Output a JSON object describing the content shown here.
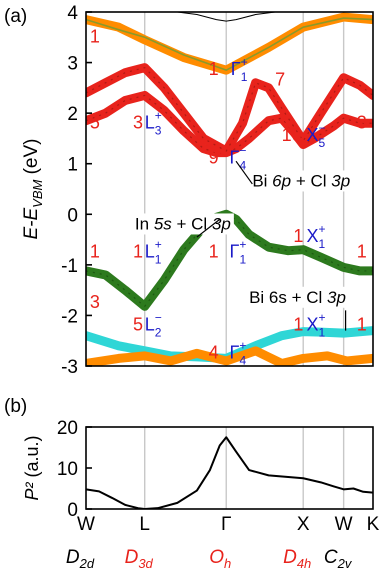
{
  "panel_a_label": "(a)",
  "panel_b_label": "(b)",
  "colors": {
    "green": "#2d7a1e",
    "red": "#e8231c",
    "orange": "#ff8c00",
    "cyan": "#2fd6d6",
    "olive": "#8a9a2a",
    "blue": "#1a1ac8",
    "grid": "#c8c8c8"
  },
  "chart_data": [
    {
      "type": "line",
      "panel": "(a)",
      "ylabel": "E-E_VBM (eV)",
      "ylabel_parts": [
        "E",
        "-E",
        "VBM",
        " (eV)"
      ],
      "ylim": [
        -3,
        4
      ],
      "yticks": [
        "4",
        "3",
        "2",
        "1",
        "0",
        "-1",
        "-2",
        "-3"
      ],
      "kpoints": [
        "W",
        "L",
        "Γ",
        "X",
        "W",
        "K"
      ],
      "kpath": [
        0,
        0.9,
        2.15,
        3.33,
        3.95,
        4.4
      ],
      "series": [
        {
          "color": "green",
          "x": [
            0,
            0.3,
            0.6,
            0.9,
            1.2,
            1.5,
            1.8,
            2.0,
            2.15,
            2.3,
            2.5,
            2.8,
            3.1,
            3.33,
            3.6,
            3.95,
            4.2,
            4.4
          ],
          "y": [
            -1.12,
            -1.2,
            -1.5,
            -1.82,
            -1.3,
            -0.7,
            -0.25,
            -0.06,
            0.0,
            -0.1,
            -0.4,
            -0.65,
            -0.72,
            -0.7,
            -0.85,
            -1.05,
            -1.12,
            -1.12
          ]
        },
        {
          "color": "red",
          "x": [
            0,
            0.3,
            0.6,
            0.9,
            1.2,
            1.5,
            1.8,
            2.0,
            2.15,
            2.3,
            2.5,
            2.8,
            3.0,
            3.2,
            3.33,
            3.5,
            3.8,
            3.95,
            4.2,
            4.4
          ],
          "y": [
            1.85,
            2.0,
            2.25,
            2.35,
            2.05,
            1.65,
            1.3,
            1.22,
            1.22,
            1.3,
            1.5,
            1.85,
            1.9,
            1.6,
            1.38,
            1.5,
            1.75,
            1.9,
            1.8,
            1.8
          ]
        },
        {
          "color": "red",
          "x": [
            0,
            0.3,
            0.6,
            0.9,
            1.2,
            1.5,
            1.8,
            2.15,
            2.4,
            2.6,
            2.8,
            3.0,
            3.33,
            3.6,
            3.95,
            4.2,
            4.4
          ],
          "y": [
            2.4,
            2.6,
            2.8,
            2.9,
            2.5,
            2.0,
            1.5,
            1.25,
            1.8,
            2.6,
            2.5,
            2.1,
            1.45,
            2.0,
            2.7,
            2.55,
            2.35
          ]
        },
        {
          "color": "cyan",
          "x": [
            0,
            0.5,
            0.9,
            1.3,
            1.7,
            2.15,
            2.6,
            3.0,
            3.33,
            3.6,
            3.95,
            4.4
          ],
          "y": [
            -2.4,
            -2.6,
            -2.7,
            -2.8,
            -2.82,
            -2.85,
            -2.6,
            -2.4,
            -2.32,
            -2.33,
            -2.35,
            -2.3
          ]
        },
        {
          "color": "orange",
          "x": [
            0,
            0.5,
            0.9,
            1.3,
            1.7,
            2.15,
            2.6,
            3.0,
            3.33,
            3.7,
            4.0,
            4.4
          ],
          "y": [
            -2.95,
            -2.85,
            -2.8,
            -2.9,
            -2.75,
            -2.9,
            -2.7,
            -2.95,
            -2.85,
            -2.8,
            -2.9,
            -2.85
          ]
        },
        {
          "color": "orange",
          "x": [
            0,
            0.5,
            0.9,
            1.5,
            2.15,
            2.8,
            3.33,
            3.95,
            4.4
          ],
          "y": [
            3.85,
            3.7,
            3.45,
            3.1,
            2.85,
            3.3,
            3.7,
            3.9,
            3.85
          ]
        },
        {
          "color": "olive",
          "x": [
            0,
            0.5,
            0.9,
            1.5,
            2.15,
            2.8,
            3.33,
            3.95,
            4.4
          ],
          "y": [
            3.85,
            3.65,
            3.5,
            3.15,
            2.85,
            3.3,
            3.7,
            3.88,
            3.85
          ]
        },
        {
          "color": "black",
          "x": [
            1.4,
            1.7,
            2.0,
            2.15,
            2.3,
            2.6,
            2.9
          ],
          "y": [
            4.0,
            3.95,
            3.85,
            3.82,
            3.85,
            3.95,
            4.0
          ]
        }
      ],
      "annotations": [
        {
          "text": "1",
          "kind": "red",
          "x": 0.06,
          "y": 3.4
        },
        {
          "text": "5",
          "kind": "red",
          "x": 0.06,
          "y": 1.7
        },
        {
          "text": "3",
          "kind": "red",
          "x": 0.72,
          "y": 1.7
        },
        {
          "text": "1",
          "kind": "red",
          "x": 0.06,
          "y": -0.85
        },
        {
          "text": "1",
          "kind": "red",
          "x": 0.72,
          "y": -0.85
        },
        {
          "text": "3",
          "kind": "red",
          "x": 0.06,
          "y": -1.85
        },
        {
          "text": "5",
          "kind": "red",
          "x": 0.72,
          "y": -2.3
        },
        {
          "text": "1",
          "kind": "red",
          "x": 1.88,
          "y": 2.75
        },
        {
          "text": "7",
          "kind": "red",
          "x": 2.9,
          "y": 2.55
        },
        {
          "text": "9",
          "kind": "red",
          "x": 1.88,
          "y": 1.0
        },
        {
          "text": "10",
          "kind": "red",
          "x": 3.0,
          "y": 1.45
        },
        {
          "text": "3",
          "kind": "red",
          "x": 4.15,
          "y": 1.7
        },
        {
          "text": "1",
          "kind": "red",
          "x": 1.88,
          "y": -0.85
        },
        {
          "text": "1",
          "kind": "red",
          "x": 3.18,
          "y": -0.55
        },
        {
          "text": "1",
          "kind": "red",
          "x": 4.15,
          "y": -0.85
        },
        {
          "text": "4",
          "kind": "red",
          "x": 1.88,
          "y": -2.85
        },
        {
          "text": "1",
          "kind": "red",
          "x": 3.18,
          "y": -2.3
        },
        {
          "text": "1",
          "kind": "red",
          "x": 4.15,
          "y": -2.3
        }
      ],
      "irreps": [
        {
          "base": "Γ",
          "sup": "+",
          "sub": "1",
          "x": 2.22,
          "y": 2.75
        },
        {
          "base": "L",
          "sup": "+",
          "sub": "3",
          "x": 0.9,
          "y": 1.7
        },
        {
          "base": "Γ",
          "sup": "−",
          "sub": "4",
          "x": 2.2,
          "y": 1.0
        },
        {
          "base": "X",
          "sup": "−",
          "sub": "5",
          "x": 3.38,
          "y": 1.45
        },
        {
          "base": "L",
          "sup": "+",
          "sub": "1",
          "x": 0.9,
          "y": -0.85
        },
        {
          "base": "Γ",
          "sup": "+",
          "sub": "1",
          "x": 2.2,
          "y": -0.85
        },
        {
          "base": "X",
          "sup": "+",
          "sub": "1",
          "x": 3.38,
          "y": -0.55
        },
        {
          "base": "L",
          "sup": "−",
          "sub": "2",
          "x": 0.9,
          "y": -2.3
        },
        {
          "base": "Γ",
          "sup": "+",
          "sub": "4",
          "x": 2.2,
          "y": -2.85
        },
        {
          "base": "X",
          "sup": "+",
          "sub": "1",
          "x": 3.38,
          "y": -2.3
        }
      ],
      "orbital_labels": [
        {
          "parts": [
            "Bi ",
            "6p",
            " + Cl ",
            "3p"
          ],
          "x": 2.55,
          "y": 0.55
        },
        {
          "parts": [
            "In ",
            "5s",
            " + Cl ",
            "3p"
          ],
          "x": 0.75,
          "y": -0.3
        },
        {
          "parts": [
            "Bi 6s + Cl ",
            "3p"
          ],
          "x": 2.5,
          "y": -1.75
        }
      ]
    },
    {
      "type": "line",
      "panel": "(b)",
      "ylabel": "P² (a.u.)",
      "ylim": [
        0,
        20
      ],
      "yticks": [
        "20",
        "10",
        "0"
      ],
      "kpoints": [
        "W",
        "L",
        "Γ",
        "X",
        "W",
        "K"
      ],
      "symmetry": [
        {
          "base": "D",
          "sub": "2d",
          "kind": "black"
        },
        {
          "base": "D",
          "sub": "3d",
          "kind": "red"
        },
        {
          "base": "O",
          "sub": "h",
          "kind": "red"
        },
        {
          "base": "D",
          "sub": "4h",
          "kind": "red"
        },
        {
          "base": "C",
          "sub": "2v",
          "kind": "black"
        }
      ],
      "x": [
        0,
        0.2,
        0.4,
        0.6,
        0.8,
        0.9,
        1.1,
        1.4,
        1.7,
        1.9,
        2.05,
        2.15,
        2.3,
        2.5,
        2.8,
        3.1,
        3.33,
        3.6,
        3.8,
        3.95,
        4.1,
        4.25,
        4.4
      ],
      "y": [
        4.8,
        4.3,
        2.7,
        1.0,
        0.2,
        0.0,
        0.2,
        1.5,
        4.5,
        9.5,
        15.5,
        17.5,
        14.0,
        9.5,
        8.2,
        7.8,
        7.5,
        6.5,
        5.5,
        4.8,
        5.0,
        4.2,
        4.0
      ]
    }
  ]
}
